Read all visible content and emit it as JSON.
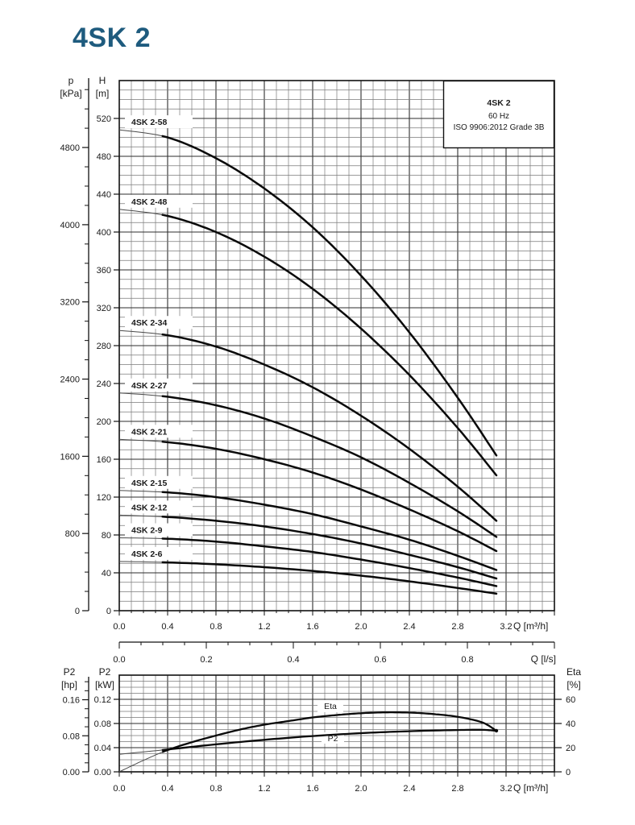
{
  "page": {
    "title": "4SK 2",
    "title_color": "#1e5b7e"
  },
  "colors": {
    "grid_minor": "#7a7a7a",
    "grid_major": "#2e2e2e",
    "frame": "#111111",
    "curve": "#0a0a0a",
    "curve_thin": "#4a4a4a",
    "text": "#1a1a1a"
  },
  "chart_data": [
    {
      "id": "head_curves",
      "type": "line",
      "legend": {
        "lines": [
          "4SK 2",
          "60 Hz",
          "ISO 9906:2012 Grade 3B"
        ]
      },
      "x_axis": {
        "title": "Q [m³/h]",
        "min": 0,
        "max": 3.6,
        "major": 0.4,
        "minor": 0.1,
        "labels": [
          "0.0",
          "0.4",
          "0.8",
          "1.2",
          "1.6",
          "2.0",
          "2.4",
          "2.8",
          "3.2"
        ]
      },
      "x_axis_ls": {
        "title": "Q [l/s]",
        "min": 0,
        "max": 1.0,
        "major": 0.2,
        "minor": 0.05,
        "labels": [
          "0.0",
          "0.2",
          "0.4",
          "0.6",
          "0.8"
        ]
      },
      "y_axis_m": {
        "title_lines": [
          "H",
          "[m]"
        ],
        "min": 0,
        "max": 560,
        "major": 40,
        "minor": 10,
        "labels": [
          "0",
          "40",
          "80",
          "120",
          "160",
          "200",
          "240",
          "280",
          "320",
          "360",
          "400",
          "440",
          "480",
          "520"
        ]
      },
      "y_axis_kpa": {
        "title_lines": [
          "p",
          "[kPa]"
        ],
        "min": 0,
        "max": 5400,
        "major": 800,
        "minor": 200,
        "labels": [
          "0",
          "800",
          "1600",
          "2400",
          "3200",
          "4000",
          "4800"
        ]
      },
      "series": [
        {
          "name": "4SK 2-58",
          "points": [
            [
              0,
              508
            ],
            [
              0.4,
              500
            ],
            [
              0.8,
              478
            ],
            [
              1.2,
              446
            ],
            [
              1.6,
              405
            ],
            [
              2.0,
              354
            ],
            [
              2.4,
              294
            ],
            [
              2.8,
              225
            ],
            [
              3.12,
              164
            ]
          ]
        },
        {
          "name": "4SK 2-48",
          "points": [
            [
              0,
              424
            ],
            [
              0.4,
              417
            ],
            [
              0.8,
              400
            ],
            [
              1.2,
              374
            ],
            [
              1.6,
              340
            ],
            [
              2.0,
              298
            ],
            [
              2.4,
              249
            ],
            [
              2.8,
              193
            ],
            [
              3.12,
              143
            ]
          ]
        },
        {
          "name": "4SK 2-34",
          "points": [
            [
              0,
              296
            ],
            [
              0.4,
              291
            ],
            [
              0.8,
              279
            ],
            [
              1.2,
              260
            ],
            [
              1.6,
              236
            ],
            [
              2.0,
              206
            ],
            [
              2.4,
              171
            ],
            [
              2.8,
              131
            ],
            [
              3.12,
              95
            ]
          ]
        },
        {
          "name": "4SK 2-27",
          "points": [
            [
              0,
              230
            ],
            [
              0.4,
              226
            ],
            [
              0.8,
              217
            ],
            [
              1.2,
              203
            ],
            [
              1.6,
              184
            ],
            [
              2.0,
              162
            ],
            [
              2.4,
              135
            ],
            [
              2.8,
              105
            ],
            [
              3.12,
              78
            ]
          ]
        },
        {
          "name": "4SK 2-21",
          "points": [
            [
              0,
              181
            ],
            [
              0.4,
              178
            ],
            [
              0.8,
              171
            ],
            [
              1.2,
              160
            ],
            [
              1.6,
              146
            ],
            [
              2.0,
              128
            ],
            [
              2.4,
              107
            ],
            [
              2.8,
              84
            ],
            [
              3.12,
              63
            ]
          ]
        },
        {
          "name": "4SK 2-15",
          "points": [
            [
              0,
              127
            ],
            [
              0.4,
              125
            ],
            [
              0.8,
              120
            ],
            [
              1.2,
              112
            ],
            [
              1.6,
              102
            ],
            [
              2.0,
              89
            ],
            [
              2.4,
              75
            ],
            [
              2.8,
              58
            ],
            [
              3.12,
              43
            ]
          ]
        },
        {
          "name": "4SK 2-12",
          "points": [
            [
              0,
              101
            ],
            [
              0.4,
              99
            ],
            [
              0.8,
              95
            ],
            [
              1.2,
              89
            ],
            [
              1.6,
              81
            ],
            [
              2.0,
              71
            ],
            [
              2.4,
              59
            ],
            [
              2.8,
              46
            ],
            [
              3.12,
              34
            ]
          ]
        },
        {
          "name": "4SK 2-9",
          "points": [
            [
              0,
              77
            ],
            [
              0.4,
              76
            ],
            [
              0.8,
              73
            ],
            [
              1.2,
              68
            ],
            [
              1.6,
              62
            ],
            [
              2.0,
              54
            ],
            [
              2.4,
              45
            ],
            [
              2.8,
              35
            ],
            [
              3.12,
              26
            ]
          ]
        },
        {
          "name": "4SK 2-6",
          "points": [
            [
              0,
              52
            ],
            [
              0.4,
              51
            ],
            [
              0.8,
              49
            ],
            [
              1.2,
              46
            ],
            [
              1.6,
              42
            ],
            [
              2.0,
              37
            ],
            [
              2.4,
              31
            ],
            [
              2.8,
              24
            ],
            [
              3.12,
              18
            ]
          ]
        }
      ]
    },
    {
      "id": "power_efficiency",
      "type": "line",
      "x_axis": {
        "title": "Q [m³/h]",
        "min": 0,
        "max": 3.6,
        "major": 0.4,
        "minor": 0.1,
        "labels": [
          "0.0",
          "0.4",
          "0.8",
          "1.2",
          "1.6",
          "2.0",
          "2.4",
          "2.8",
          "3.2"
        ]
      },
      "y_axis_kw": {
        "title_lines": [
          "P2",
          "[kW]"
        ],
        "min": 0,
        "max": 0.16,
        "major": 0.04,
        "minor": 0.01,
        "labels": [
          "0.00",
          "0.04",
          "0.08",
          "0.12"
        ]
      },
      "y_axis_hp": {
        "title_lines": [
          "P2",
          "[hp]"
        ],
        "min": 0,
        "max": 0.2,
        "major": 0.08,
        "minor": 0.02,
        "labels": [
          "0.00",
          "0.08",
          "0.16"
        ]
      },
      "y_axis_eta": {
        "title_lines": [
          "Eta",
          "[%]"
        ],
        "min": 0,
        "max": 80,
        "major": 20,
        "labels": [
          "0",
          "20",
          "40",
          "60"
        ]
      },
      "series": [
        {
          "name": "P2",
          "unit": "kW",
          "points": [
            [
              0,
              0.029
            ],
            [
              0.4,
              0.037
            ],
            [
              0.8,
              0.0455
            ],
            [
              1.2,
              0.053
            ],
            [
              1.6,
              0.0592
            ],
            [
              2.0,
              0.064
            ],
            [
              2.4,
              0.0672
            ],
            [
              2.8,
              0.0692
            ],
            [
              3.0,
              0.0695
            ],
            [
              3.12,
              0.068
            ]
          ]
        },
        {
          "name": "Eta",
          "unit": "%",
          "points": [
            [
              0,
              0
            ],
            [
              0.2,
              9.5
            ],
            [
              0.4,
              18
            ],
            [
              0.6,
              24.5
            ],
            [
              0.8,
              30
            ],
            [
              1.0,
              35
            ],
            [
              1.2,
              39
            ],
            [
              1.4,
              42
            ],
            [
              1.6,
              45
            ],
            [
              1.8,
              47
            ],
            [
              2.0,
              48.5
            ],
            [
              2.2,
              49.2
            ],
            [
              2.4,
              49
            ],
            [
              2.6,
              47.8
            ],
            [
              2.8,
              45.5
            ],
            [
              3.0,
              41
            ],
            [
              3.12,
              34
            ]
          ]
        }
      ]
    }
  ]
}
